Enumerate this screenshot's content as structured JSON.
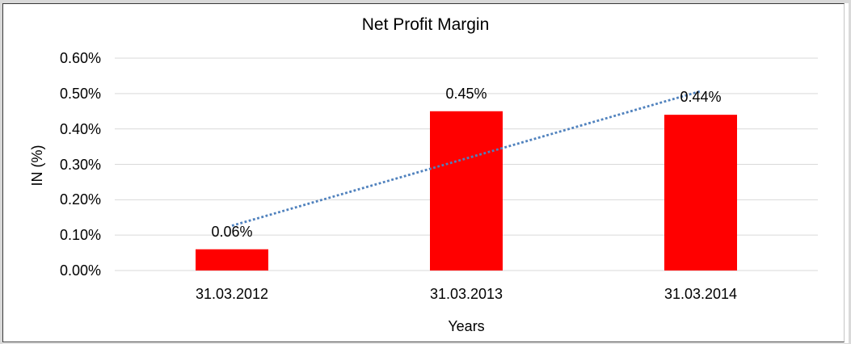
{
  "window": {
    "frame_color": "#D9D9D9",
    "border_color": "#3A3A3A",
    "border_right_color": "#C6C6C6",
    "surface_color": "#FFFFFF",
    "text_color": "#000000"
  },
  "chart_data": {
    "type": "bar",
    "title": "Net Profit Margin",
    "xlabel": "Years",
    "ylabel": "IN (%)",
    "categories": [
      "31.03.2012",
      "31.03.2013",
      "31.03.2014"
    ],
    "values": [
      0.06,
      0.45,
      0.44
    ],
    "data_labels": [
      "0.06%",
      "0.45%",
      "0.44%"
    ],
    "unit": "%",
    "ylim": [
      0,
      0.6
    ],
    "ytick_values": [
      0,
      0.1,
      0.2,
      0.3,
      0.4,
      0.5,
      0.6
    ],
    "ytick_labels": [
      "0.00%",
      "0.10%",
      "0.20%",
      "0.30%",
      "0.40%",
      "0.50%",
      "0.60%"
    ],
    "grid": true,
    "legend": false,
    "trendline": {
      "type": "linear",
      "style": "dotted"
    },
    "colors": {
      "bar": "#FF0000",
      "trendline": "#4F81BD",
      "gridline": "#D9D9D9",
      "text": "#000000"
    }
  }
}
